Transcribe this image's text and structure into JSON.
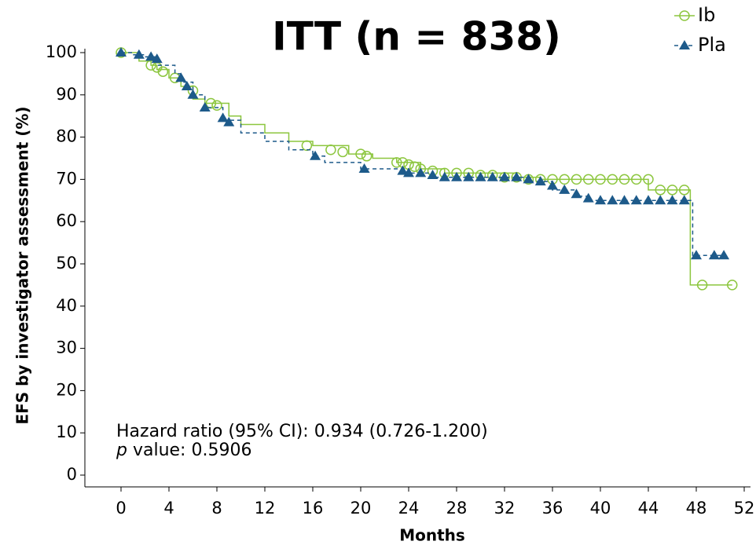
{
  "chart_data": {
    "type": "km",
    "title": "ITT (n = 838)",
    "y_label": "EFS by investigator assessment (%)",
    "x_label": "Months",
    "annotation": "Hazard ratio (95% CI): 0.934 (0.726-1.200)",
    "p_symbol": "p",
    "p_text": "value: 0.5906",
    "xlim": [
      0,
      52
    ],
    "xticks": [
      0,
      4,
      8,
      12,
      16,
      20,
      24,
      28,
      32,
      36,
      40,
      44,
      48,
      52
    ],
    "ylim": [
      0,
      100
    ],
    "yticks": [
      0,
      10,
      20,
      30,
      40,
      50,
      60,
      70,
      80,
      90,
      100
    ],
    "series": [
      {
        "name": "Ib",
        "color": "#8cc63e",
        "marker": "circle",
        "dashed": false,
        "x": [
          0,
          1.5,
          1.5,
          2.5,
          2.5,
          3,
          3,
          4,
          4,
          5,
          5,
          6,
          6,
          7,
          7,
          9,
          9,
          10,
          10,
          12,
          12,
          14,
          14,
          16,
          16,
          19,
          19,
          21,
          21,
          23,
          23,
          25,
          25,
          27,
          27,
          33,
          33,
          35,
          35,
          44,
          44,
          47.5,
          47.5,
          51
        ],
        "values": [
          100,
          100,
          98,
          98,
          97,
          97,
          96,
          96,
          94,
          94,
          92,
          92,
          89,
          89,
          88,
          88,
          85,
          85,
          83,
          83,
          81,
          81,
          79,
          79,
          78,
          78,
          76,
          76,
          75,
          75,
          74,
          74,
          72.5,
          72.5,
          71.5,
          71.5,
          70.5,
          70.5,
          70,
          70,
          67.5,
          67.5,
          45,
          45
        ],
        "censor_x": [
          0,
          2.5,
          3,
          3.5,
          4.5,
          6,
          7.5,
          8,
          15.5,
          17.5,
          18.5,
          20,
          20.5,
          23,
          23.5,
          24,
          24.5,
          25,
          26,
          27,
          28,
          29,
          30,
          31,
          32,
          33,
          34,
          35,
          36,
          37,
          38,
          39,
          40,
          41,
          42,
          43,
          44,
          45,
          46,
          47,
          48.5,
          51
        ],
        "censor_values": [
          100,
          97,
          96.5,
          95.5,
          94,
          91,
          88,
          87.5,
          78,
          77,
          76.5,
          76,
          75.5,
          74,
          74,
          73.5,
          73,
          72.5,
          72,
          71.5,
          71.5,
          71.5,
          71,
          71,
          70.5,
          70.5,
          70,
          70,
          70,
          70,
          70,
          70,
          70,
          70,
          70,
          70,
          70,
          67.5,
          67.5,
          67.5,
          45,
          45
        ]
      },
      {
        "name": "Pla",
        "color": "#1d5a8a",
        "marker": "triangle",
        "dashed": true,
        "x": [
          0,
          1,
          1,
          2,
          2,
          3,
          3,
          4.5,
          4.5,
          5,
          5,
          6,
          6,
          7,
          7,
          8.5,
          8.5,
          10,
          10,
          12,
          12,
          14,
          14,
          16,
          16,
          17,
          17,
          20,
          20,
          24,
          24,
          26,
          26,
          34,
          34,
          36,
          36,
          38,
          38,
          39,
          39,
          47.7,
          47.7,
          50.3
        ],
        "values": [
          100,
          100,
          99.5,
          99.5,
          99,
          99,
          97,
          97,
          95,
          95,
          93,
          93,
          90,
          90,
          87,
          87,
          84,
          84,
          81,
          81,
          79,
          79,
          77,
          77,
          75.5,
          75.5,
          74,
          74,
          72.5,
          72.5,
          71.5,
          71.5,
          70.5,
          70.5,
          69.5,
          69.5,
          67.5,
          67.5,
          66,
          66,
          65,
          65,
          52,
          52
        ],
        "censor_x": [
          0,
          1.5,
          2.5,
          3,
          5,
          5.5,
          6,
          7,
          8.5,
          9,
          16.2,
          20.3,
          23.5,
          24,
          25,
          26,
          27,
          28,
          29,
          30,
          31,
          32,
          33,
          34,
          35,
          36,
          37,
          38,
          39,
          40,
          41,
          42,
          43,
          44,
          45,
          46,
          47,
          48,
          49.5,
          50.3
        ],
        "censor_values": [
          100,
          99.5,
          99,
          98.5,
          94,
          92,
          90,
          87,
          84.5,
          83.5,
          75.5,
          72.5,
          72,
          71.5,
          71.5,
          71,
          70.5,
          70.5,
          70.5,
          70.5,
          70.5,
          70.5,
          70.5,
          70,
          69.5,
          68.5,
          67.5,
          66.5,
          65.5,
          65,
          65,
          65,
          65,
          65,
          65,
          65,
          65,
          52,
          52,
          52
        ]
      }
    ]
  }
}
